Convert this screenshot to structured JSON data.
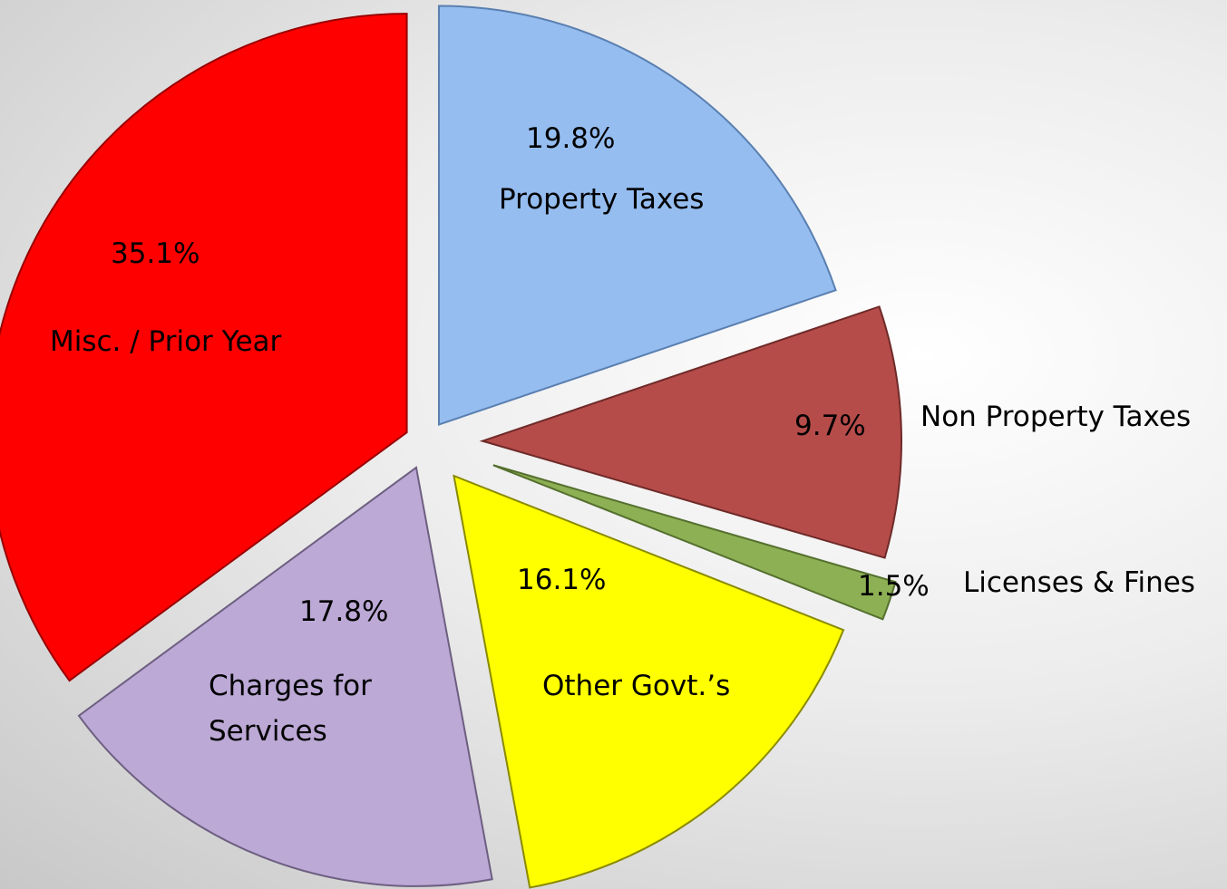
{
  "chart_data": {
    "type": "pie",
    "categories": [
      "Property Taxes",
      "Non Property Taxes",
      "Licenses & Fines",
      "Other Govt.’s",
      "Charges for Services",
      "Misc. / Prior Year"
    ],
    "values": [
      19.8,
      9.7,
      1.5,
      16.1,
      17.8,
      35.1
    ],
    "value_labels": [
      "19.8%",
      "9.7%",
      "1.5%",
      "16.1%",
      "17.8%",
      "35.1%"
    ],
    "colors": [
      "#95bdf0",
      "#b54c4a",
      "#8db054",
      "#ffff00",
      "#bca9d6",
      "#ff0000"
    ]
  }
}
